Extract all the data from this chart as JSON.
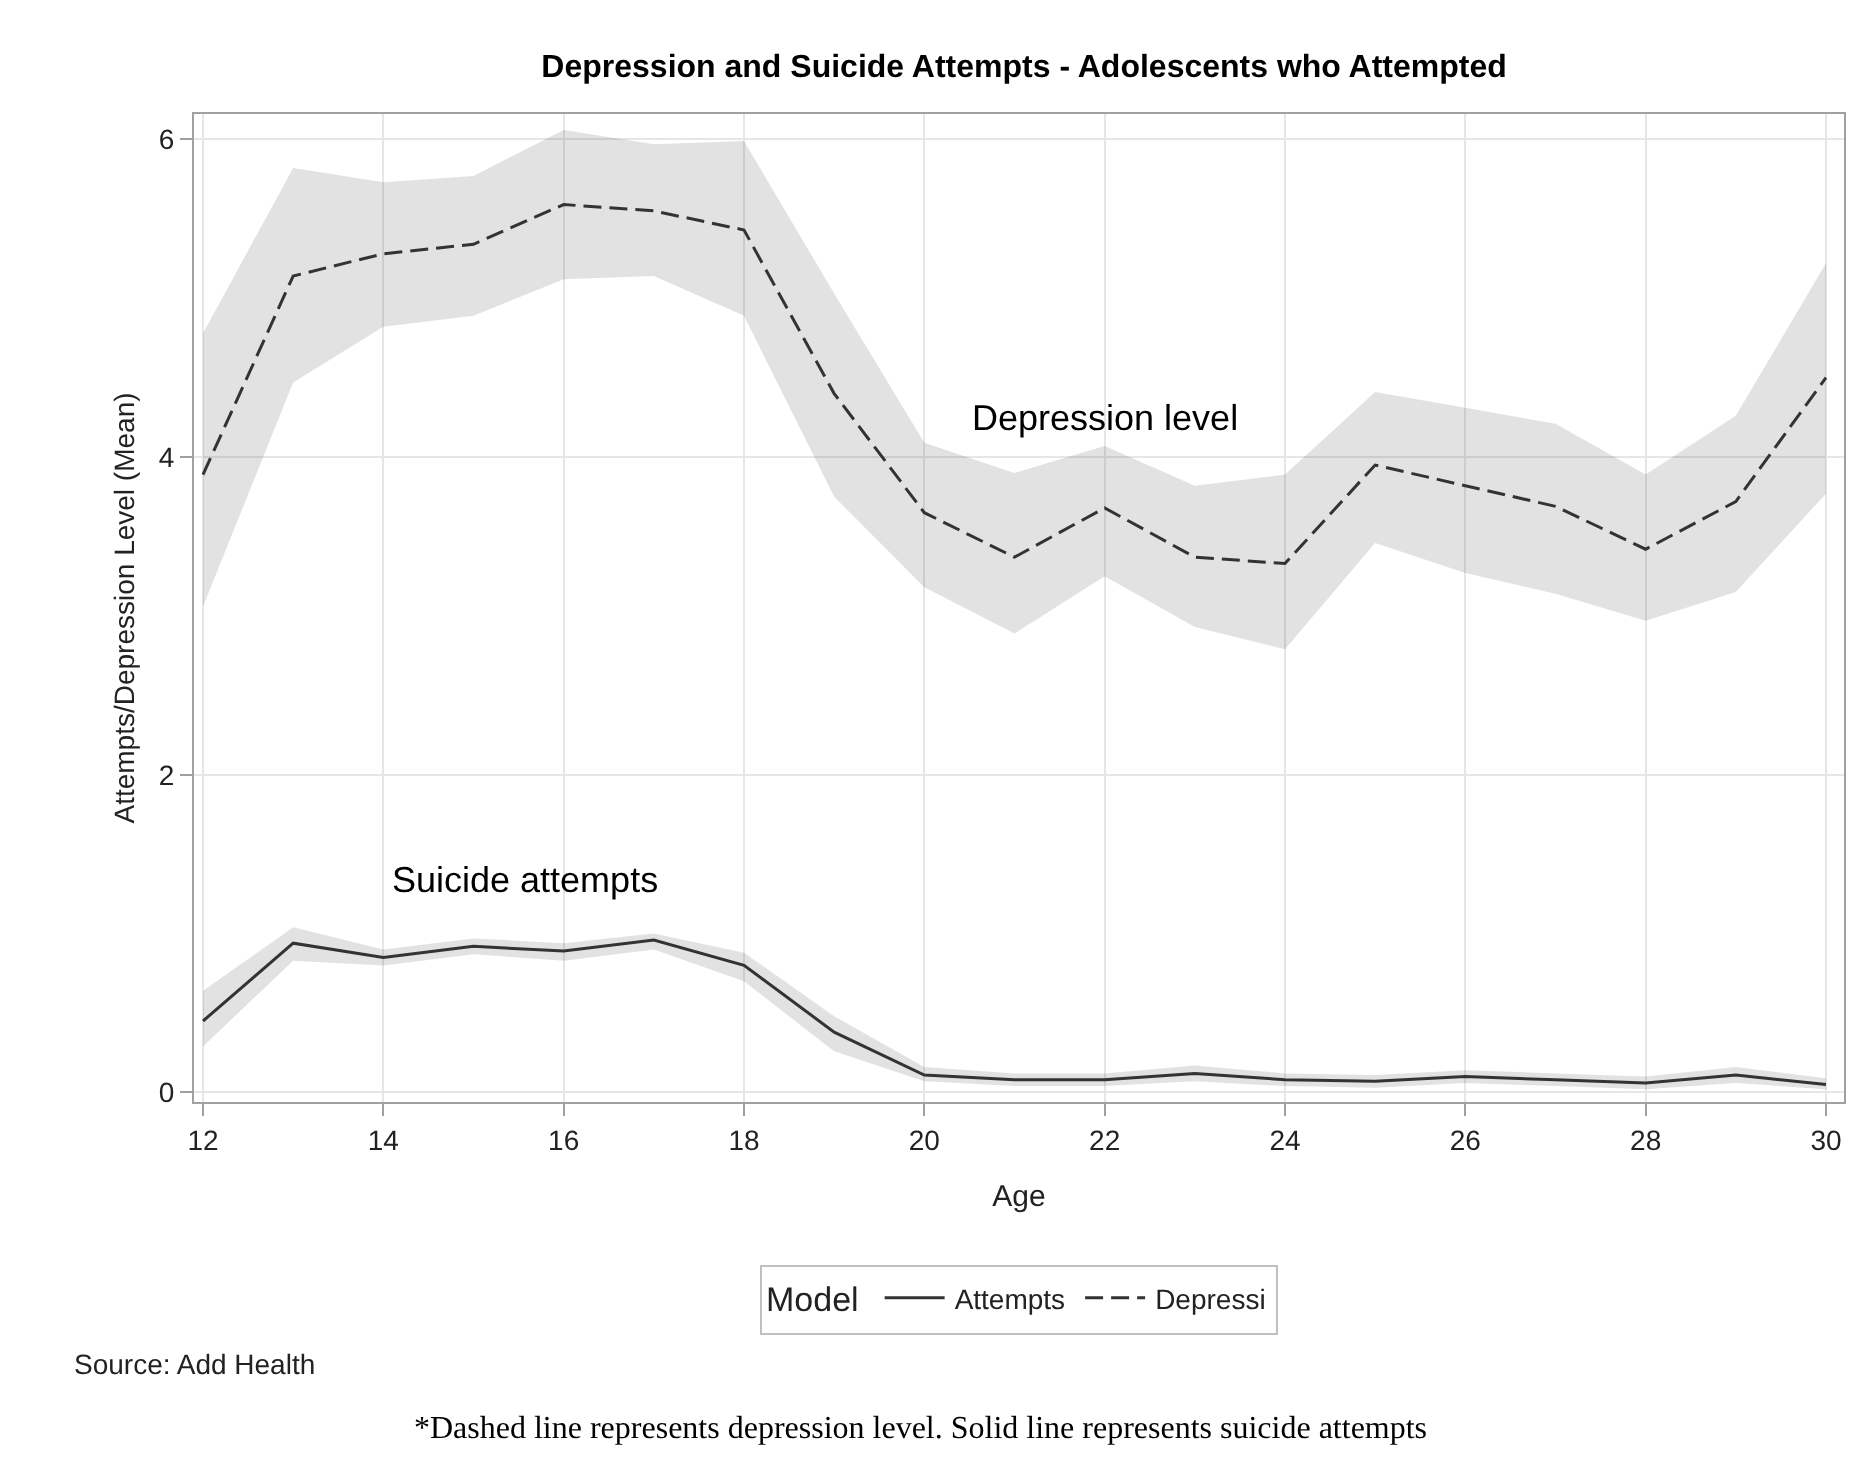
{
  "chart_data": {
    "type": "line",
    "title": "Depression and Suicide Attempts - Adolescents who Attempted",
    "xlabel": "Age",
    "ylabel": "Attempts/Depression Level (Mean)",
    "legend_title": "Model",
    "x": [
      12,
      13,
      14,
      15,
      16,
      17,
      18,
      19,
      20,
      21,
      22,
      23,
      24,
      25,
      26,
      27,
      28,
      29,
      30
    ],
    "series": [
      {
        "name": "Attempts",
        "color": "#333333",
        "line_style": "solid",
        "values": [
          0.45,
          0.94,
          0.85,
          0.92,
          0.89,
          0.96,
          0.8,
          0.38,
          0.11,
          0.08,
          0.08,
          0.12,
          0.08,
          0.07,
          0.1,
          0.08,
          0.06,
          0.11,
          0.05
        ],
        "lower": [
          0.29,
          0.83,
          0.8,
          0.87,
          0.83,
          0.9,
          0.7,
          0.26,
          0.07,
          0.04,
          0.04,
          0.07,
          0.04,
          0.03,
          0.06,
          0.04,
          0.02,
          0.06,
          0.02
        ],
        "upper": [
          0.64,
          1.04,
          0.9,
          0.97,
          0.94,
          1.0,
          0.88,
          0.48,
          0.16,
          0.12,
          0.12,
          0.17,
          0.12,
          0.11,
          0.14,
          0.12,
          0.1,
          0.16,
          0.09
        ]
      },
      {
        "name": "Depressi",
        "color": "#333333",
        "line_style": "dashed",
        "values": [
          3.89,
          5.14,
          5.28,
          5.34,
          5.59,
          5.55,
          5.43,
          4.4,
          3.65,
          3.37,
          3.68,
          3.37,
          3.33,
          3.95,
          3.82,
          3.69,
          3.42,
          3.72,
          4.5
        ],
        "lower": [
          3.06,
          4.47,
          4.82,
          4.89,
          5.12,
          5.14,
          4.89,
          3.75,
          3.18,
          2.89,
          3.25,
          2.93,
          2.79,
          3.46,
          3.27,
          3.14,
          2.97,
          3.15,
          3.77
        ],
        "upper": [
          4.78,
          5.82,
          5.73,
          5.77,
          6.06,
          5.97,
          5.99,
          5.03,
          4.09,
          3.9,
          4.07,
          3.82,
          3.89,
          4.41,
          4.31,
          4.21,
          3.89,
          4.26,
          5.22
        ]
      }
    ],
    "annotations": [
      "Suicide attempts",
      {
        "text": "Depression level",
        "x": 22,
        "y": 4.1
      },
      "Source: Add Health",
      "*Dashed line represents depression level. Solid line represents suicide attempts"
    ],
    "xlim": [
      11.9,
      30.2
    ],
    "xticks": [
      12,
      14,
      16,
      18,
      20,
      22,
      24,
      26,
      28,
      30
    ],
    "ylim": [
      -0.06,
      6.16
    ],
    "yticks": [
      0,
      2,
      4,
      6
    ],
    "grid": true,
    "legend": "bottom",
    "marker": "none"
  }
}
